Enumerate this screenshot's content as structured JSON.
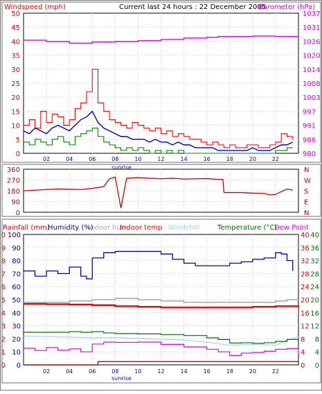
{
  "header": {
    "left_label": "Windspeed (mph)",
    "center_title": "Current last 24 hours : 22 December 2005",
    "right_label": "Barometer (hPa)"
  },
  "colors": {
    "wind_gust": "#ff0000",
    "wind_avg": "#0000c0",
    "wind_min": "#008000",
    "barometer": "#e000e0",
    "wind_dir": "#cc0000",
    "humidity": "#0000b0",
    "indoor_humidity": "#a8a8a8",
    "indoor_temp": "#ee0000",
    "windchill": "#b0d0f0",
    "temperature": "#007000",
    "dew_point": "#e000e0",
    "rainfall": "#cc0000"
  },
  "chart_data": [
    {
      "type": "line",
      "x_ticks": [
        "02",
        "04",
        "06",
        "08",
        "10",
        "12",
        "14",
        "16",
        "18",
        "20",
        "22"
      ],
      "x_sub_label": "sunrise",
      "ylabel_left": "Windspeed (mph)",
      "ylim_left": [
        0,
        50
      ],
      "yticks_left": [
        "0",
        "5",
        "10",
        "15",
        "20",
        "25",
        "30",
        "35",
        "40",
        "45",
        "50"
      ],
      "ylabel_right": "Barometer (hPa)",
      "ylim_right": [
        980,
        1037
      ],
      "yticks_right": [
        "980",
        "986",
        "991",
        "997",
        "1003",
        "1008",
        "1014",
        "1020",
        "1026",
        "1031",
        "1037"
      ],
      "grid": true,
      "series": [
        {
          "name": "Gust",
          "axis": "left",
          "x": [
            0,
            0.5,
            1,
            1.5,
            2,
            2.5,
            3,
            3.5,
            4,
            4.5,
            5,
            5.5,
            6,
            6.5,
            7,
            7.5,
            8,
            8.5,
            9,
            9.5,
            10,
            10.5,
            11,
            11.5,
            12,
            12.5,
            13,
            13.5,
            14,
            14.5,
            15,
            15.5,
            16,
            16.5,
            17,
            17.5,
            18,
            18.5,
            19,
            19.5,
            20,
            20.5,
            21,
            21.5,
            22,
            22.5,
            23,
            23.5
          ],
          "values": [
            10,
            12,
            9,
            15,
            11,
            14,
            13,
            10,
            12,
            16,
            18,
            22,
            30,
            18,
            15,
            12,
            11,
            10,
            9,
            11,
            10,
            9,
            8,
            9,
            7,
            8,
            6,
            7,
            6,
            5,
            5,
            4,
            3,
            4,
            3,
            2,
            3,
            2,
            2,
            3,
            3,
            2,
            2,
            3,
            4,
            7,
            6,
            5
          ]
        },
        {
          "name": "Average",
          "axis": "left",
          "x": [
            0,
            0.5,
            1,
            1.5,
            2,
            2.5,
            3,
            3.5,
            4,
            4.5,
            5,
            5.5,
            6,
            6.5,
            7,
            7.5,
            8,
            8.5,
            9,
            9.5,
            10,
            10.5,
            11,
            11.5,
            12,
            12.5,
            13,
            13.5,
            14,
            14.5,
            15,
            15.5,
            16,
            16.5,
            17,
            17.5,
            18,
            18.5,
            19,
            19.5,
            20,
            20.5,
            21,
            21.5,
            22,
            22.5,
            23,
            23.5
          ],
          "values": [
            8,
            7,
            9,
            8,
            7,
            9,
            10,
            9,
            8,
            10,
            12,
            13,
            15,
            11,
            9,
            8,
            7,
            6,
            6,
            5,
            5,
            5,
            4,
            5,
            4,
            4,
            3,
            4,
            3,
            3,
            2,
            2,
            2,
            2,
            1,
            1,
            1,
            1,
            1,
            1,
            2,
            1,
            1,
            1,
            2,
            3,
            3,
            4
          ]
        },
        {
          "name": "Minimum",
          "axis": "left",
          "x": [
            0,
            0.5,
            1,
            1.5,
            2,
            2.5,
            3,
            3.5,
            4,
            4.5,
            5,
            5.5,
            6,
            6.5,
            7,
            7.5,
            8,
            8.5,
            9,
            9.5,
            10,
            10.5,
            11,
            11.5,
            12,
            12.5,
            13,
            13.5,
            14,
            14.5,
            15,
            15.5,
            16,
            16.5,
            17,
            17.5,
            18,
            18.5,
            19,
            19.5,
            20,
            20.5,
            21,
            21.5,
            22,
            22.5,
            23,
            23.5
          ],
          "values": [
            4,
            3,
            5,
            4,
            3,
            5,
            6,
            4,
            3,
            6,
            7,
            8,
            9,
            6,
            4,
            3,
            2,
            1,
            2,
            1,
            2,
            1,
            0,
            1,
            0,
            1,
            0,
            1,
            0,
            0,
            0,
            0,
            0,
            0,
            0,
            0,
            0,
            0,
            0,
            0,
            0,
            0,
            0,
            0,
            1,
            1,
            2,
            2
          ]
        },
        {
          "name": "Barometer",
          "axis": "right",
          "x": [
            0,
            2,
            4,
            5,
            6,
            8,
            10,
            12,
            14,
            16,
            17,
            18,
            20,
            21,
            22,
            23,
            24
          ],
          "values": [
            1026,
            1025.5,
            1024.8,
            1024.8,
            1025.3,
            1025.5,
            1025.8,
            1026.3,
            1026.9,
            1027.2,
            1027.5,
            1027.5,
            1027.7,
            1027.7,
            1027.5,
            1027.5,
            1027.5
          ]
        }
      ]
    },
    {
      "type": "line",
      "x_ticks": [
        "02",
        "04",
        "06",
        "08",
        "10",
        "12",
        "14",
        "16",
        "18",
        "20",
        "22"
      ],
      "ylim": [
        0,
        360
      ],
      "yticks": [
        "0",
        "90",
        "180",
        "270",
        "360"
      ],
      "right_labels": [
        "N",
        "W",
        "S",
        "E",
        "N"
      ],
      "grid": true,
      "series": [
        {
          "name": "Wind direction",
          "x": [
            0,
            1,
            2,
            3,
            4,
            5,
            6,
            7,
            7.5,
            8,
            8.5,
            9,
            10,
            11,
            12,
            13,
            14,
            15,
            16,
            17,
            17.4,
            17.5,
            18,
            19,
            20,
            21,
            21.5,
            22,
            23,
            23.5
          ],
          "values": [
            180,
            185,
            190,
            195,
            192,
            190,
            200,
            215,
            280,
            295,
            35,
            285,
            290,
            285,
            280,
            285,
            278,
            280,
            282,
            275,
            275,
            165,
            165,
            165,
            160,
            158,
            145,
            150,
            195,
            185
          ]
        }
      ]
    },
    {
      "type": "line",
      "x_ticks": [
        "02",
        "04",
        "06",
        "08",
        "10",
        "12",
        "14",
        "16",
        "18",
        "20",
        "22"
      ],
      "x_sub_label": "sunrise",
      "legend": [
        "Rainfall (mm)",
        "Humidity (%)",
        "Indoor hum",
        "Indoor temp",
        "Windchill",
        "Temperature (°C)",
        "Dew Point"
      ],
      "ylim_rain": [
        0,
        10
      ],
      "yticks_rain": [
        "0",
        "1",
        "2",
        "3",
        "4",
        "5",
        "6",
        "7",
        "8",
        "9",
        "10"
      ],
      "ylim_hum": [
        0,
        100
      ],
      "yticks_hum": [
        "0",
        "10",
        "20",
        "30",
        "40",
        "50",
        "60",
        "70",
        "80",
        "90",
        "100"
      ],
      "ylim_temp_right": [
        0,
        40
      ],
      "yticks_temp_right": [
        "0",
        "4",
        "8",
        "12",
        "16",
        "20",
        "24",
        "28",
        "32",
        "36",
        "40"
      ],
      "grid": true,
      "series": [
        {
          "name": "Humidity (%)",
          "x": [
            0,
            1,
            2,
            3,
            4,
            5,
            5.5,
            6,
            7,
            8,
            10,
            12,
            13,
            14,
            15,
            16,
            17,
            18,
            19,
            20,
            21,
            22,
            22.5,
            23,
            23.5
          ],
          "values": [
            72,
            68,
            72,
            70,
            75,
            68,
            66,
            82,
            86,
            87,
            87,
            85,
            81,
            78,
            76,
            76,
            76,
            78,
            79,
            81,
            82,
            86,
            85,
            80,
            72
          ]
        },
        {
          "name": "Indoor hum",
          "x": [
            0,
            2,
            4,
            6,
            8,
            10,
            12,
            14,
            16,
            18,
            20,
            22,
            23,
            24
          ],
          "values": [
            48,
            48,
            49,
            50,
            51,
            50,
            49,
            48,
            48,
            48,
            48,
            49,
            50,
            50
          ]
        },
        {
          "name": "Indoor temp",
          "x": [
            0,
            2,
            4,
            6,
            8,
            10,
            12,
            14,
            16,
            18,
            20,
            22,
            24
          ],
          "values": [
            18.7,
            18.6,
            18.5,
            18.3,
            18.0,
            17.8,
            17.6,
            17.6,
            17.6,
            17.6,
            17.8,
            18.0,
            18.1
          ]
        },
        {
          "name": "Windchill",
          "x": [
            0,
            2,
            4,
            6,
            8,
            10,
            12,
            14,
            16,
            18,
            20,
            22,
            23,
            24
          ],
          "values": [
            8.8,
            8.7,
            8.5,
            8.3,
            8.4,
            8.1,
            7.9,
            7.6,
            7.0,
            6.0,
            6.3,
            6.0,
            7.5,
            8.6
          ]
        },
        {
          "name": "Temperature (°C)",
          "x": [
            0,
            2,
            4,
            5,
            6,
            7,
            8,
            10,
            12,
            14,
            16,
            17,
            18,
            19,
            20,
            21,
            22,
            23,
            24
          ],
          "values": [
            10.0,
            10.0,
            10.2,
            10.0,
            10.2,
            9.8,
            9.6,
            9.5,
            9.3,
            9.0,
            8.3,
            7.8,
            6.7,
            6.8,
            6.6,
            6.8,
            7.2,
            7.8,
            8.4
          ]
        },
        {
          "name": "Dew Point",
          "x": [
            0,
            1,
            2,
            3,
            4,
            5,
            6,
            7,
            8,
            10,
            12,
            14,
            16,
            17,
            18,
            19,
            20,
            21,
            22,
            23,
            24
          ],
          "values": [
            5.1,
            4.4,
            5.3,
            4.5,
            4.9,
            4.0,
            6.4,
            7.0,
            6.9,
            7.0,
            6.3,
            5.5,
            4.8,
            4.0,
            2.9,
            3.6,
            3.8,
            4.2,
            4.8,
            5.0,
            3.4
          ]
        },
        {
          "name": "Rainfall (mm)",
          "x": [
            0,
            6.5,
            6.5,
            24
          ],
          "values": [
            0,
            0,
            0.25,
            0.25
          ]
        }
      ]
    }
  ]
}
